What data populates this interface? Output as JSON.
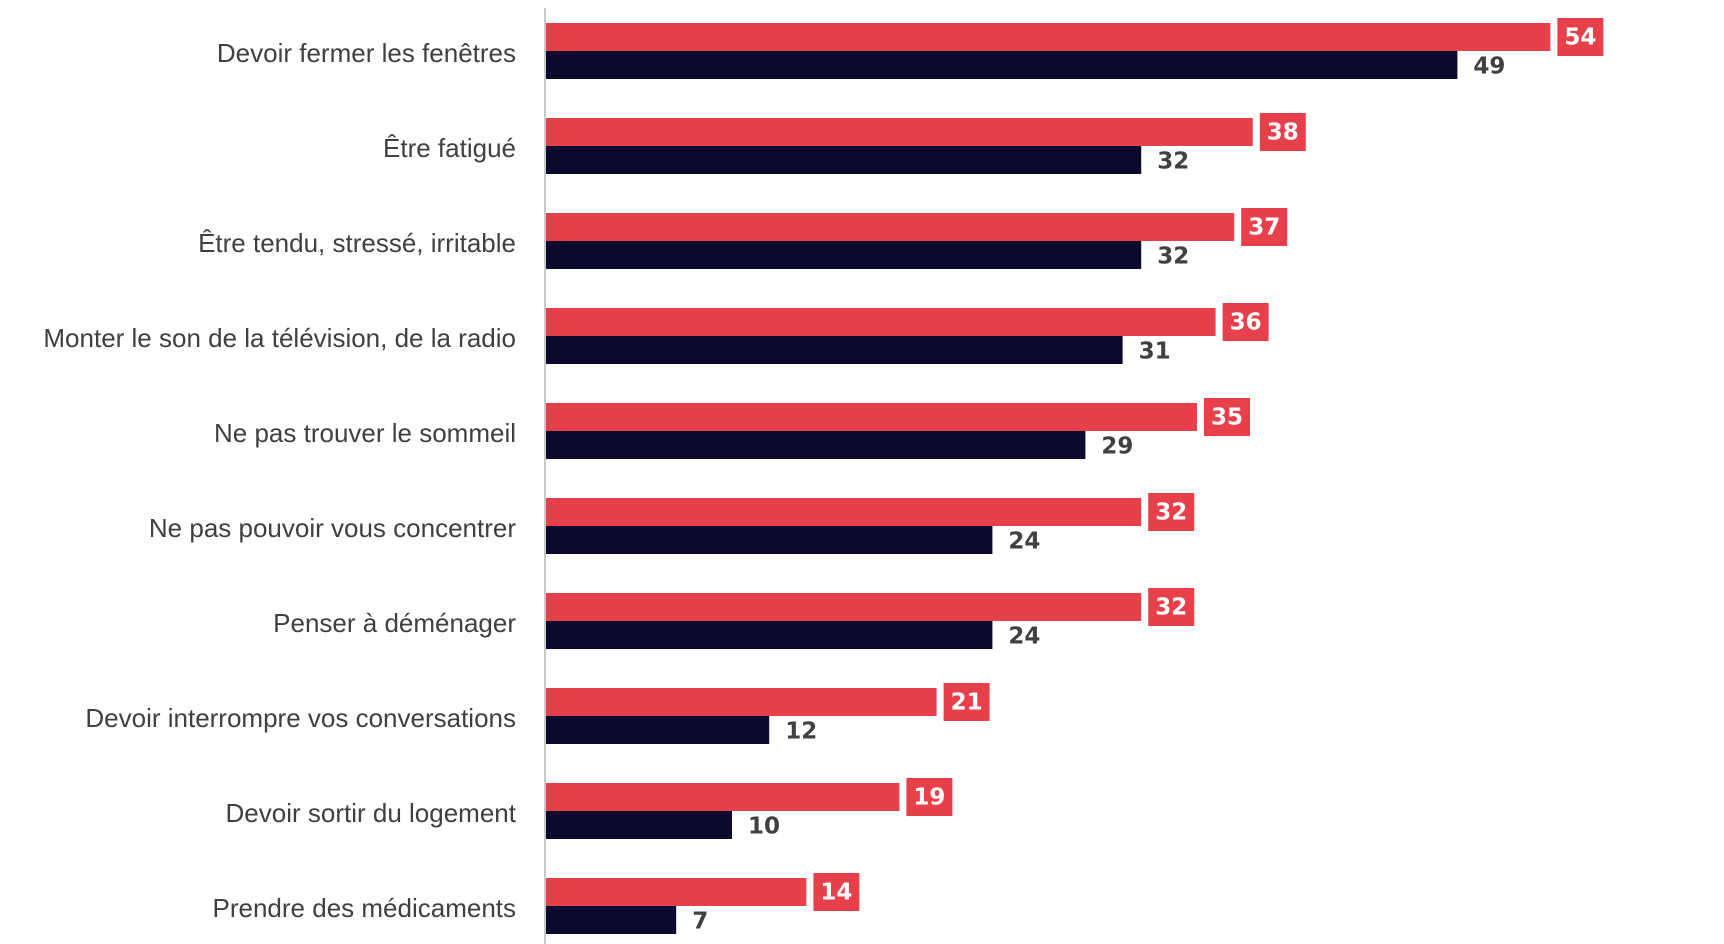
{
  "chart_data": {
    "type": "bar",
    "orientation": "horizontal",
    "categories": [
      "Devoir fermer les fenêtres",
      "Être fatigué",
      "Être tendu, stressé, irritable",
      "Monter le son de la télévision, de la radio",
      "Ne pas trouver le sommeil",
      "Ne pas pouvoir vous concentrer",
      "Penser à déménager",
      "Devoir interrompre vos conversations",
      "Devoir sortir du logement",
      "Prendre des médicaments"
    ],
    "series": [
      {
        "values": [
          54,
          38,
          37,
          36,
          35,
          32,
          32,
          21,
          19,
          14
        ],
        "color": "#e8404a"
      },
      {
        "values": [
          49,
          32,
          32,
          31,
          29,
          24,
          24,
          12,
          10,
          7
        ],
        "color": "#0b0a2e"
      }
    ],
    "title": "",
    "xlabel": "",
    "ylabel": "",
    "xlim": [
      0,
      58
    ],
    "grid": false,
    "legend": "none",
    "data_labels": true
  },
  "colors": {
    "series1_label_box": "#e8404a",
    "axis_line": "#c8c8c8"
  }
}
